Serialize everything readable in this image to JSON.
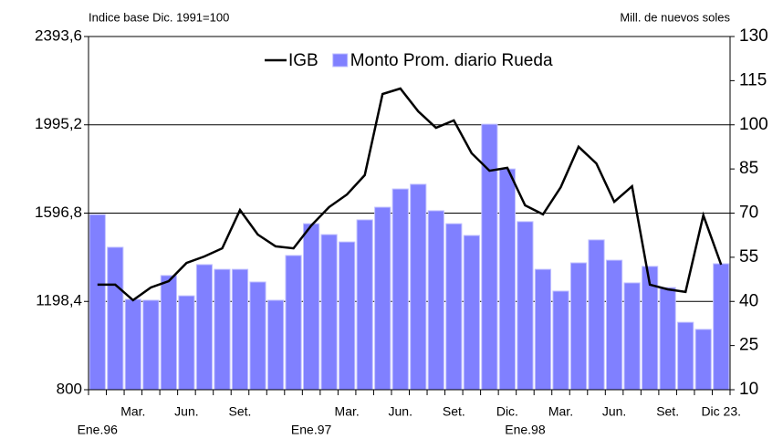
{
  "chart_data": {
    "type": "bar-line",
    "left_axis_title": "Indice base Dic. 1991=100",
    "right_axis_title": "Mill. de nuevos soles",
    "categories": [
      "Ene.96",
      null,
      "Mar.",
      null,
      null,
      "Jun.",
      null,
      null,
      "Set.",
      null,
      null,
      null,
      "Ene.97",
      null,
      "Mar.",
      null,
      null,
      "Jun.",
      null,
      null,
      "Set.",
      null,
      null,
      "Dic.",
      "Ene.98",
      null,
      "Mar.",
      null,
      null,
      "Jun.",
      null,
      null,
      "Set.",
      null,
      null,
      "Dic 23."
    ],
    "series": [
      {
        "name": "IGB",
        "type": "line",
        "axis": "y",
        "color": "#000000",
        "values": [
          1274,
          1274,
          1204,
          1261,
          1290,
          1372,
          1401,
          1438,
          1611,
          1500,
          1447,
          1438,
          1541,
          1624,
          1681,
          1768,
          2134,
          2159,
          2056,
          1982,
          2015,
          1867,
          1788,
          1801,
          1632,
          1591,
          1714,
          1896,
          1821,
          1648,
          1718,
          1274,
          1253,
          1241,
          1587,
          1364
        ]
      },
      {
        "name": "Monto Prom. diario Rueda",
        "type": "bar",
        "axis": "y2",
        "color": "#8080ff",
        "values": [
          69.5,
          58.4,
          40.7,
          40.4,
          48.8,
          41.9,
          52.5,
          50.9,
          50.9,
          46.6,
          40.4,
          55.6,
          66.4,
          62.7,
          60.2,
          67.7,
          72.0,
          78.2,
          79.8,
          70.8,
          66.4,
          62.4,
          100.2,
          85.0,
          67.1,
          50.9,
          43.5,
          53.1,
          60.9,
          54.0,
          46.3,
          51.9,
          44.7,
          32.9,
          30.5,
          52.8
        ]
      }
    ],
    "ylim": [
      800,
      2393.6
    ],
    "yticks": [
      800,
      {
        "value": 1198.4,
        "label": "1198,4"
      },
      {
        "value": 1596.8,
        "label": "1596,8"
      },
      {
        "value": 1995.2,
        "label": "1995,2"
      },
      {
        "value": 2393.6,
        "label": "2393,6"
      }
    ],
    "y2lim": [
      10,
      130
    ],
    "y2ticks": [
      10,
      25,
      40,
      55,
      70,
      85,
      100,
      115,
      130
    ],
    "grid": true,
    "legend": "top"
  }
}
